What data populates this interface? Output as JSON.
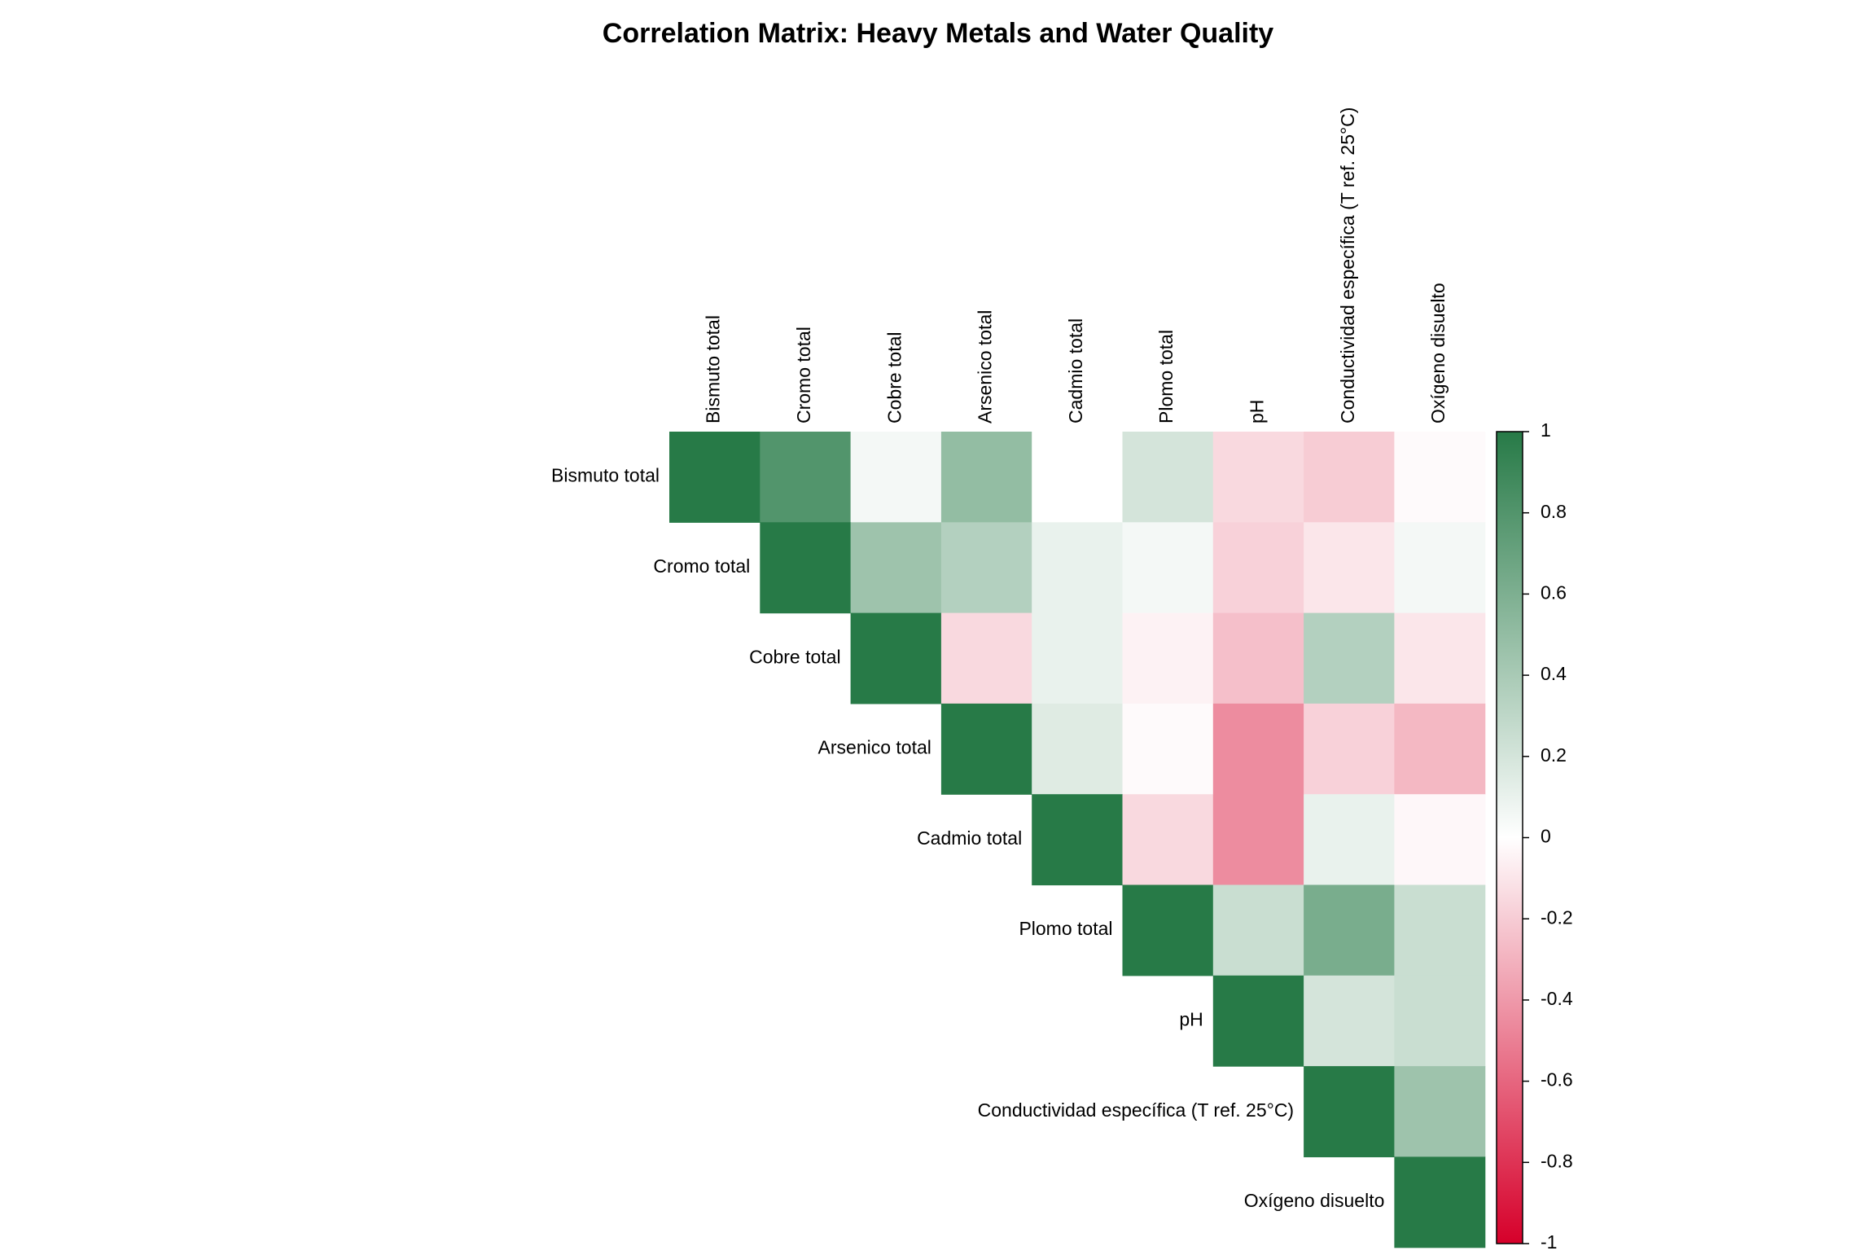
{
  "chart_data": {
    "type": "heatmap",
    "title": "Correlation Matrix: Heavy Metals and Water Quality",
    "layout": "upper-triangle",
    "variables": [
      "Bismuto total",
      "Cromo total",
      "Cobre total",
      "Arsenico total",
      "Cadmio total",
      "Plomo total",
      "pH",
      "Conductividad específica (T ref. 25°C)",
      "Oxígeno disuelto"
    ],
    "matrix": [
      [
        1.0,
        0.8,
        0.05,
        0.5,
        0.0,
        0.2,
        -0.15,
        -0.2,
        -0.02
      ],
      [
        null,
        1.0,
        0.45,
        0.35,
        0.1,
        0.05,
        -0.18,
        -0.1,
        0.05
      ],
      [
        null,
        null,
        1.0,
        -0.15,
        0.1,
        -0.05,
        -0.25,
        0.35,
        -0.1
      ],
      [
        null,
        null,
        null,
        1.0,
        0.15,
        -0.02,
        -0.45,
        -0.18,
        -0.28
      ],
      [
        null,
        null,
        null,
        null,
        1.0,
        -0.15,
        -0.45,
        0.1,
        -0.03
      ],
      [
        null,
        null,
        null,
        null,
        null,
        1.0,
        0.25,
        0.62,
        0.25
      ],
      [
        null,
        null,
        null,
        null,
        null,
        null,
        1.0,
        0.2,
        0.25
      ],
      [
        null,
        null,
        null,
        null,
        null,
        null,
        null,
        1.0,
        0.45
      ],
      [
        null,
        null,
        null,
        null,
        null,
        null,
        null,
        null,
        1.0
      ]
    ],
    "colorbar": {
      "range": [
        -1,
        1
      ],
      "ticks": [
        "1",
        "0.8",
        "0.6",
        "0.4",
        "0.2",
        "0",
        "-0.2",
        "-0.4",
        "-0.6",
        "-0.8",
        "-1"
      ],
      "tick_values": [
        1,
        0.8,
        0.6,
        0.4,
        0.2,
        0,
        -0.2,
        -0.4,
        -0.6,
        -0.8,
        -1
      ],
      "colors": {
        "negative": "#d6002a",
        "zero": "#ffffff",
        "positive": "#277a47"
      }
    }
  }
}
